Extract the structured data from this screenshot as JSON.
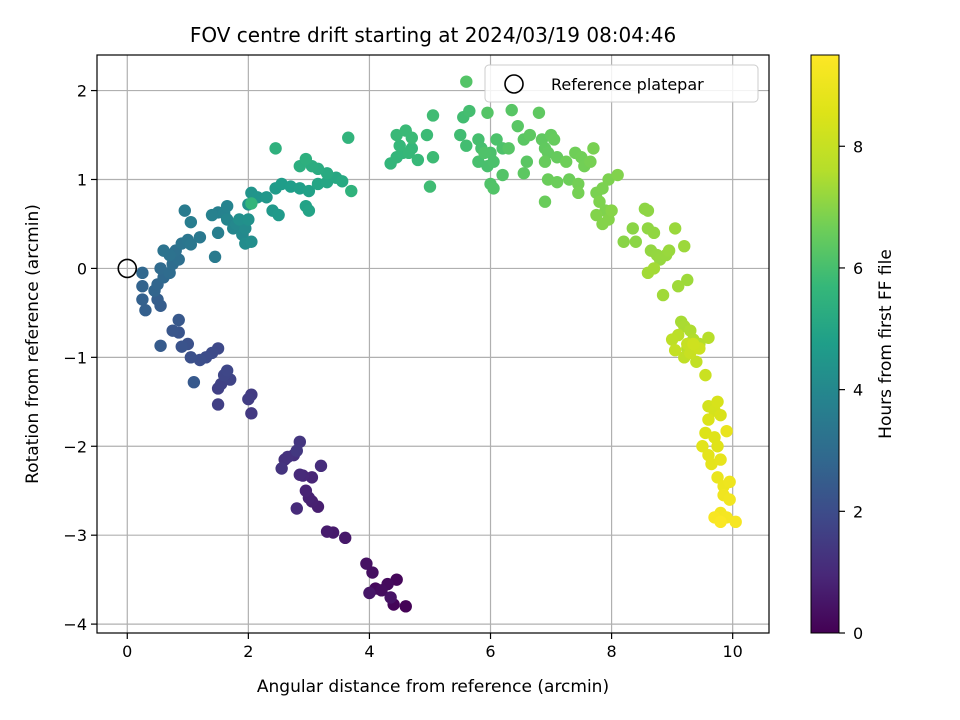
{
  "chart_data": {
    "type": "scatter",
    "title": "FOV centre drift starting at 2024/03/19 08:04:46",
    "xlabel": "Angular distance from reference (arcmin)",
    "ylabel": "Rotation from reference (arcmin)",
    "xlim": [
      -0.5,
      10.6
    ],
    "ylim": [
      -4.1,
      2.4
    ],
    "xticks": [
      0,
      2,
      4,
      6,
      8,
      10
    ],
    "yticks": [
      -4,
      -3,
      -2,
      -1,
      0,
      1,
      2
    ],
    "grid": true,
    "colormap": "viridis",
    "colorbar": {
      "label": "Hours from first FF file",
      "range": [
        0,
        9.5
      ],
      "ticks": [
        0,
        2,
        4,
        6,
        8
      ]
    },
    "legend": {
      "placement": "top-right",
      "entries": [
        "Reference platepar"
      ]
    },
    "reference_point": {
      "x": 0,
      "y": 0,
      "label": "Reference platepar"
    },
    "series": [
      {
        "points": [
          [
            4.6,
            -3.8,
            0.05
          ],
          [
            4.4,
            -3.78,
            0.1
          ],
          [
            4.45,
            -3.5,
            0.15
          ],
          [
            4.1,
            -3.6,
            0.2
          ],
          [
            4.3,
            -3.55,
            0.25
          ],
          [
            4.2,
            -3.62,
            0.3
          ],
          [
            4.05,
            -3.42,
            0.35
          ],
          [
            3.95,
            -3.32,
            0.4
          ],
          [
            4.35,
            -3.7,
            0.45
          ],
          [
            4.0,
            -3.65,
            0.5
          ],
          [
            3.6,
            -3.03,
            0.55
          ],
          [
            3.4,
            -2.97,
            0.6
          ],
          [
            3.3,
            -2.96,
            0.65
          ],
          [
            3.15,
            -2.68,
            0.7
          ],
          [
            3.05,
            -2.62,
            0.75
          ],
          [
            3.0,
            -2.58,
            0.8
          ],
          [
            2.95,
            -2.5,
            0.85
          ],
          [
            3.05,
            -2.35,
            0.9
          ],
          [
            2.9,
            -2.33,
            0.95
          ],
          [
            2.85,
            -2.32,
            1.0
          ],
          [
            2.8,
            -2.7,
            1.05
          ],
          [
            3.2,
            -2.22,
            1.1
          ],
          [
            2.75,
            -2.1,
            1.15
          ],
          [
            2.6,
            -2.15,
            1.2
          ],
          [
            2.65,
            -2.12,
            1.25
          ],
          [
            2.55,
            -2.25,
            1.3
          ],
          [
            2.85,
            -1.95,
            1.35
          ],
          [
            2.8,
            -2.05,
            1.4
          ],
          [
            2.05,
            -1.63,
            1.45
          ],
          [
            2.05,
            -1.42,
            1.5
          ],
          [
            2.0,
            -1.47,
            1.55
          ],
          [
            1.5,
            -1.53,
            1.6
          ],
          [
            1.5,
            -1.35,
            1.65
          ],
          [
            1.55,
            -1.3,
            1.7
          ],
          [
            1.7,
            -1.25,
            1.75
          ],
          [
            1.6,
            -1.2,
            1.8
          ],
          [
            1.65,
            -1.15,
            1.85
          ],
          [
            1.5,
            -0.9,
            1.9
          ],
          [
            1.4,
            -0.95,
            1.95
          ],
          [
            1.3,
            -1.0,
            2.0
          ],
          [
            1.2,
            -1.03,
            2.05
          ],
          [
            1.05,
            -1.0,
            2.1
          ],
          [
            1.0,
            -0.85,
            2.15
          ],
          [
            0.9,
            -0.88,
            2.2
          ],
          [
            0.85,
            -0.72,
            2.25
          ],
          [
            0.75,
            -0.7,
            2.3
          ],
          [
            0.85,
            -0.58,
            2.35
          ],
          [
            1.1,
            -1.28,
            2.4
          ],
          [
            0.55,
            -0.87,
            2.45
          ],
          [
            0.55,
            -0.42,
            2.5
          ],
          [
            0.5,
            -0.35,
            2.55
          ],
          [
            0.3,
            -0.47,
            2.6
          ],
          [
            0.25,
            -0.35,
            2.65
          ],
          [
            0.25,
            -0.2,
            2.7
          ],
          [
            0.45,
            -0.25,
            2.75
          ],
          [
            0.5,
            -0.18,
            2.8
          ],
          [
            0.25,
            -0.05,
            2.85
          ],
          [
            0.6,
            -0.1,
            2.9
          ],
          [
            0.55,
            0.0,
            2.95
          ],
          [
            0.7,
            -0.05,
            3.0
          ],
          [
            0.75,
            0.05,
            3.05
          ],
          [
            0.85,
            0.1,
            3.1
          ],
          [
            0.8,
            0.2,
            3.15
          ],
          [
            0.7,
            0.15,
            3.2
          ],
          [
            0.6,
            0.2,
            3.25
          ],
          [
            0.9,
            0.28,
            3.3
          ],
          [
            1.0,
            0.32,
            3.35
          ],
          [
            1.05,
            0.27,
            3.4
          ],
          [
            1.2,
            0.35,
            3.45
          ],
          [
            1.45,
            0.13,
            3.5
          ],
          [
            0.95,
            0.65,
            3.55
          ],
          [
            1.05,
            0.52,
            3.6
          ],
          [
            1.5,
            0.4,
            3.65
          ],
          [
            1.5,
            0.63,
            3.7
          ],
          [
            1.4,
            0.6,
            3.75
          ],
          [
            1.6,
            0.62,
            3.8
          ],
          [
            1.65,
            0.7,
            3.85
          ],
          [
            1.65,
            0.55,
            3.9
          ],
          [
            1.75,
            0.45,
            3.95
          ],
          [
            1.8,
            0.5,
            4.0
          ],
          [
            1.9,
            0.38,
            4.05
          ],
          [
            1.95,
            0.45,
            4.1
          ],
          [
            1.95,
            0.28,
            4.15
          ],
          [
            2.05,
            0.3,
            4.2
          ],
          [
            1.85,
            0.55,
            4.25
          ],
          [
            2.0,
            0.55,
            4.3
          ],
          [
            2.0,
            0.72,
            4.35
          ],
          [
            2.05,
            0.85,
            4.4
          ],
          [
            2.15,
            0.8,
            4.45
          ],
          [
            2.3,
            0.8,
            4.5
          ],
          [
            2.4,
            0.65,
            4.55
          ],
          [
            2.5,
            0.6,
            4.6
          ],
          [
            2.45,
            0.9,
            4.65
          ],
          [
            2.55,
            0.95,
            4.7
          ],
          [
            2.7,
            0.92,
            4.75
          ],
          [
            2.85,
            0.9,
            4.8
          ],
          [
            3.0,
            0.87,
            4.85
          ],
          [
            2.95,
            0.7,
            4.9
          ],
          [
            3.0,
            0.65,
            4.95
          ],
          [
            3.15,
            0.95,
            5.0
          ],
          [
            3.3,
            0.97,
            5.05
          ],
          [
            3.45,
            1.02,
            5.1
          ],
          [
            3.55,
            0.98,
            5.15
          ],
          [
            3.3,
            1.07,
            5.2
          ],
          [
            3.15,
            1.12,
            5.25
          ],
          [
            3.05,
            1.15,
            5.3
          ],
          [
            2.85,
            1.15,
            5.35
          ],
          [
            2.95,
            1.23,
            5.4
          ],
          [
            2.45,
            1.35,
            5.45
          ],
          [
            3.7,
            0.87,
            5.5
          ],
          [
            3.65,
            1.47,
            5.55
          ],
          [
            2.05,
            0.73,
            5.6
          ],
          [
            4.35,
            1.18,
            5.62
          ],
          [
            4.45,
            1.25,
            5.64
          ],
          [
            4.55,
            1.3,
            5.66
          ],
          [
            4.7,
            1.35,
            5.68
          ],
          [
            4.5,
            1.38,
            5.7
          ],
          [
            4.65,
            1.3,
            5.72
          ],
          [
            4.8,
            1.22,
            5.74
          ],
          [
            4.45,
            1.5,
            5.76
          ],
          [
            4.6,
            1.55,
            5.78
          ],
          [
            4.7,
            1.47,
            5.8
          ],
          [
            4.95,
            1.5,
            5.82
          ],
          [
            5.05,
            1.25,
            5.84
          ],
          [
            5.0,
            0.92,
            5.86
          ],
          [
            5.05,
            1.72,
            5.88
          ],
          [
            5.5,
            1.5,
            5.9
          ],
          [
            5.55,
            1.7,
            5.92
          ],
          [
            5.6,
            1.38,
            5.94
          ],
          [
            5.65,
            1.77,
            5.96
          ],
          [
            5.8,
            1.45,
            5.98
          ],
          [
            5.85,
            1.35,
            6.0
          ],
          [
            5.8,
            1.2,
            6.02
          ],
          [
            5.95,
            1.15,
            6.04
          ],
          [
            6.05,
            1.2,
            6.06
          ],
          [
            6.0,
            1.3,
            6.08
          ],
          [
            6.1,
            1.45,
            6.1
          ],
          [
            6.2,
            1.35,
            6.12
          ],
          [
            5.9,
            1.3,
            6.14
          ],
          [
            6.0,
            0.95,
            6.16
          ],
          [
            6.05,
            0.9,
            6.18
          ],
          [
            6.2,
            1.05,
            6.2
          ],
          [
            5.6,
            2.1,
            6.22
          ],
          [
            5.95,
            1.75,
            6.24
          ],
          [
            6.3,
            1.35,
            6.26
          ],
          [
            6.35,
            1.78,
            6.28
          ],
          [
            6.45,
            1.6,
            6.3
          ],
          [
            6.55,
            1.45,
            6.32
          ],
          [
            6.6,
            1.2,
            6.34
          ],
          [
            6.55,
            1.07,
            6.36
          ],
          [
            6.65,
            1.5,
            6.38
          ],
          [
            6.8,
            1.75,
            6.4
          ],
          [
            6.85,
            1.45,
            6.42
          ],
          [
            6.9,
            1.35,
            6.44
          ],
          [
            6.95,
            1.3,
            6.46
          ],
          [
            7.0,
            1.5,
            6.48
          ],
          [
            7.1,
            1.25,
            6.5
          ],
          [
            7.05,
            1.45,
            6.52
          ],
          [
            6.9,
            1.2,
            6.54
          ],
          [
            6.9,
            0.75,
            6.56
          ],
          [
            6.95,
            1.0,
            6.58
          ],
          [
            7.1,
            0.97,
            6.6
          ],
          [
            7.3,
            1.0,
            6.62
          ],
          [
            7.25,
            1.2,
            6.64
          ],
          [
            7.4,
            1.3,
            6.66
          ],
          [
            7.5,
            1.25,
            6.68
          ],
          [
            7.55,
            1.15,
            6.7
          ],
          [
            7.45,
            0.95,
            6.72
          ],
          [
            7.45,
            0.85,
            6.74
          ],
          [
            7.65,
            1.2,
            6.76
          ],
          [
            7.7,
            1.35,
            6.78
          ],
          [
            7.75,
            0.85,
            6.8
          ],
          [
            7.85,
            0.9,
            6.82
          ],
          [
            7.95,
            1.0,
            6.84
          ],
          [
            7.8,
            0.75,
            6.86
          ],
          [
            7.9,
            0.65,
            6.88
          ],
          [
            8.1,
            1.05,
            6.9
          ],
          [
            7.75,
            0.6,
            6.92
          ],
          [
            7.85,
            0.5,
            6.94
          ],
          [
            7.95,
            0.55,
            6.96
          ],
          [
            8.0,
            0.65,
            6.98
          ],
          [
            8.2,
            0.3,
            7.0
          ],
          [
            8.35,
            0.45,
            7.02
          ],
          [
            8.4,
            0.3,
            7.04
          ],
          [
            8.55,
            0.67,
            7.06
          ],
          [
            8.6,
            0.65,
            7.08
          ],
          [
            8.6,
            0.45,
            7.1
          ],
          [
            8.7,
            0.4,
            7.12
          ],
          [
            8.65,
            0.2,
            7.14
          ],
          [
            8.75,
            0.15,
            7.16
          ],
          [
            8.8,
            0.1,
            7.18
          ],
          [
            8.9,
            0.15,
            7.2
          ],
          [
            8.95,
            0.2,
            7.22
          ],
          [
            9.05,
            0.45,
            7.24
          ],
          [
            9.2,
            0.25,
            7.26
          ],
          [
            9.25,
            -0.13,
            7.28
          ],
          [
            9.1,
            -0.2,
            7.3
          ],
          [
            8.85,
            -0.3,
            7.32
          ],
          [
            8.6,
            -0.05,
            7.34
          ],
          [
            8.7,
            0.0,
            7.36
          ],
          [
            9.15,
            -0.6,
            7.4
          ],
          [
            9.2,
            -0.65,
            7.45
          ],
          [
            9.3,
            -0.7,
            7.5
          ],
          [
            9.35,
            -0.8,
            7.55
          ],
          [
            9.45,
            -0.85,
            7.6
          ],
          [
            9.6,
            -0.78,
            7.65
          ],
          [
            9.25,
            -0.9,
            7.7
          ],
          [
            9.1,
            -0.75,
            7.75
          ],
          [
            9.0,
            -0.8,
            7.8
          ],
          [
            9.2,
            -1.0,
            7.85
          ],
          [
            9.4,
            -1.05,
            7.9
          ],
          [
            9.05,
            -0.92,
            7.95
          ],
          [
            9.25,
            -0.85,
            8.0
          ],
          [
            9.3,
            -0.95,
            8.05
          ],
          [
            9.55,
            -1.2,
            8.1
          ],
          [
            9.45,
            -0.9,
            8.15
          ],
          [
            9.35,
            -0.85,
            8.2
          ],
          [
            9.6,
            -1.55,
            8.3
          ],
          [
            9.7,
            -1.6,
            8.35
          ],
          [
            9.75,
            -1.5,
            8.4
          ],
          [
            9.8,
            -1.65,
            8.45
          ],
          [
            9.6,
            -1.7,
            8.5
          ],
          [
            9.55,
            -1.85,
            8.55
          ],
          [
            9.7,
            -1.9,
            8.6
          ],
          [
            9.75,
            -2.0,
            8.65
          ],
          [
            9.5,
            -2.0,
            8.7
          ],
          [
            9.6,
            -2.1,
            8.75
          ],
          [
            9.65,
            -2.2,
            8.8
          ],
          [
            9.8,
            -2.15,
            8.85
          ],
          [
            9.9,
            -1.83,
            8.9
          ],
          [
            9.75,
            -2.35,
            8.95
          ],
          [
            9.85,
            -2.45,
            9.0
          ],
          [
            9.95,
            -2.4,
            9.05
          ],
          [
            9.85,
            -2.55,
            9.1
          ],
          [
            9.95,
            -2.6,
            9.15
          ],
          [
            9.8,
            -2.75,
            9.2
          ],
          [
            9.9,
            -2.8,
            9.25
          ],
          [
            10.05,
            -2.85,
            9.3
          ],
          [
            9.7,
            -2.8,
            9.35
          ],
          [
            9.8,
            -2.85,
            9.4
          ]
        ]
      }
    ]
  }
}
